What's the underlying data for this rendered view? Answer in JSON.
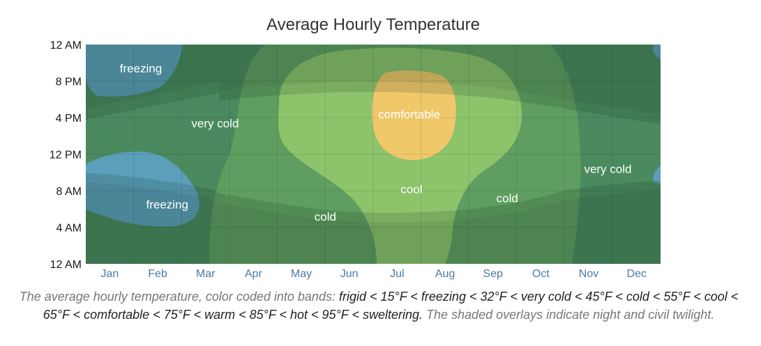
{
  "chart_data": {
    "type": "heatmap",
    "title": "Average Hourly Temperature",
    "x_ticks": [
      "Jan",
      "Feb",
      "Mar",
      "Apr",
      "May",
      "Jun",
      "Jul",
      "Aug",
      "Sep",
      "Oct",
      "Nov",
      "Dec"
    ],
    "y_ticks": [
      "12 AM",
      "4 AM",
      "8 AM",
      "12 PM",
      "4 PM",
      "8 PM",
      "12 AM"
    ],
    "y_range_hours": [
      0,
      24
    ],
    "bands": [
      {
        "name": "freezing",
        "color": "#5b9fba"
      },
      {
        "name": "very cold",
        "color": "#4a8a5e"
      },
      {
        "name": "cold",
        "color": "#5f9e60"
      },
      {
        "name": "cool",
        "color": "#8cc36b"
      },
      {
        "name": "comfortable",
        "color": "#f0c86a"
      }
    ],
    "labels": [
      {
        "text": "freezing",
        "month": 1.65,
        "hour": 21.4
      },
      {
        "text": "freezing",
        "month": 2.2,
        "hour": 6.5
      },
      {
        "text": "very cold",
        "month": 3.2,
        "hour": 15.4
      },
      {
        "text": "cold",
        "month": 5.5,
        "hour": 5.2
      },
      {
        "text": "comfortable",
        "month": 7.25,
        "hour": 16.4
      },
      {
        "text": "cool",
        "month": 7.3,
        "hour": 8.2
      },
      {
        "text": "cold",
        "month": 9.3,
        "hour": 7.2
      },
      {
        "text": "very cold",
        "month": 11.4,
        "hour": 10.4
      }
    ]
  },
  "caption": {
    "intro": "The average hourly temperature, color coded into bands:",
    "legend": "frigid < 15°F < freezing < 32°F < very cold < 45°F < cold < 55°F < cool < 65°F < comfortable < 75°F < warm < 85°F < hot < 95°F < sweltering.",
    "outro": "The shaded overlays indicate night and civil twilight."
  }
}
